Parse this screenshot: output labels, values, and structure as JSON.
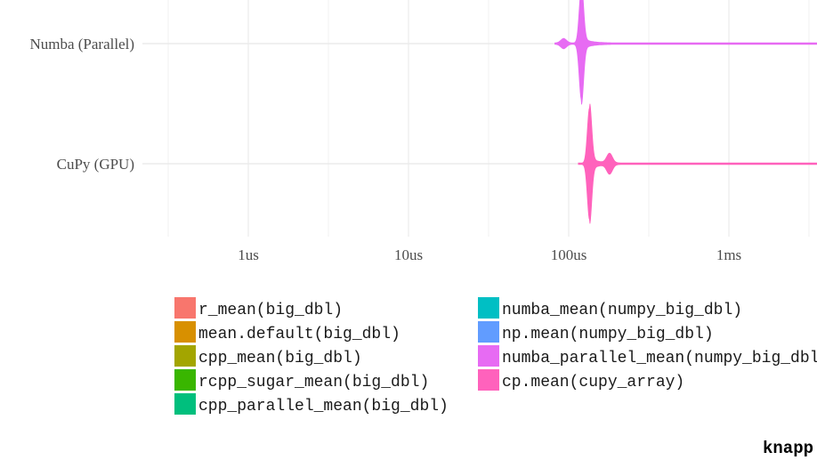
{
  "chart_data": {
    "type": "violin",
    "orientation": "horizontal",
    "x_scale": "log10",
    "x_ticks": [
      "1us",
      "10us",
      "100us",
      "1ms"
    ],
    "x_tick_values_seconds": [
      1e-06,
      1e-05,
      0.0001,
      0.001
    ],
    "xlim_seconds": [
      3e-07,
      0.01
    ],
    "categories": [
      "Numba (Parallel)",
      "CuPy (GPU)"
    ],
    "series": [
      {
        "category": "Numba (Parallel)",
        "legend_entry": "numba_parallel_mean(numpy_big_dbl)",
        "color": "#E76BF3",
        "min_seconds": 8.2e-05,
        "mode_seconds": 0.00012,
        "max_seconds": 0.01,
        "peaks": [
          {
            "at_seconds": 0.00012,
            "height": 1.0
          },
          {
            "at_seconds": 9.3e-05,
            "height": 0.08
          }
        ]
      },
      {
        "category": "CuPy (GPU)",
        "legend_entry": "cp.mean(cupy_array)",
        "color": "#FF62BC",
        "min_seconds": 0.000115,
        "mode_seconds": 0.000135,
        "max_seconds": 0.01,
        "peaks": [
          {
            "at_seconds": 0.000135,
            "height": 1.0
          },
          {
            "at_seconds": 0.00018,
            "height": 0.17
          }
        ]
      }
    ],
    "legend": {
      "placement": "bottom",
      "columns": [
        [
          {
            "label": "r_mean(big_dbl)",
            "color": "#F8766D"
          },
          {
            "label": "mean.default(big_dbl)",
            "color": "#D89000"
          },
          {
            "label": "cpp_mean(big_dbl)",
            "color": "#A3A500"
          },
          {
            "label": "rcpp_sugar_mean(big_dbl)",
            "color": "#39B600"
          },
          {
            "label": "cpp_parallel_mean(big_dbl)",
            "color": "#00BF7D"
          }
        ],
        [
          {
            "label": "numba_mean(numpy_big_dbl)",
            "color": "#00BFC4"
          },
          {
            "label": "np.mean(numpy_big_dbl)",
            "color": "#619CFF"
          },
          {
            "label": "numba_parallel_mean(numpy_big_dbl)",
            "color": "#E76BF3"
          },
          {
            "label": "cp.mean(cupy_array)",
            "color": "#FF62BC"
          }
        ]
      ]
    },
    "grid": true,
    "caption": "knapp"
  }
}
